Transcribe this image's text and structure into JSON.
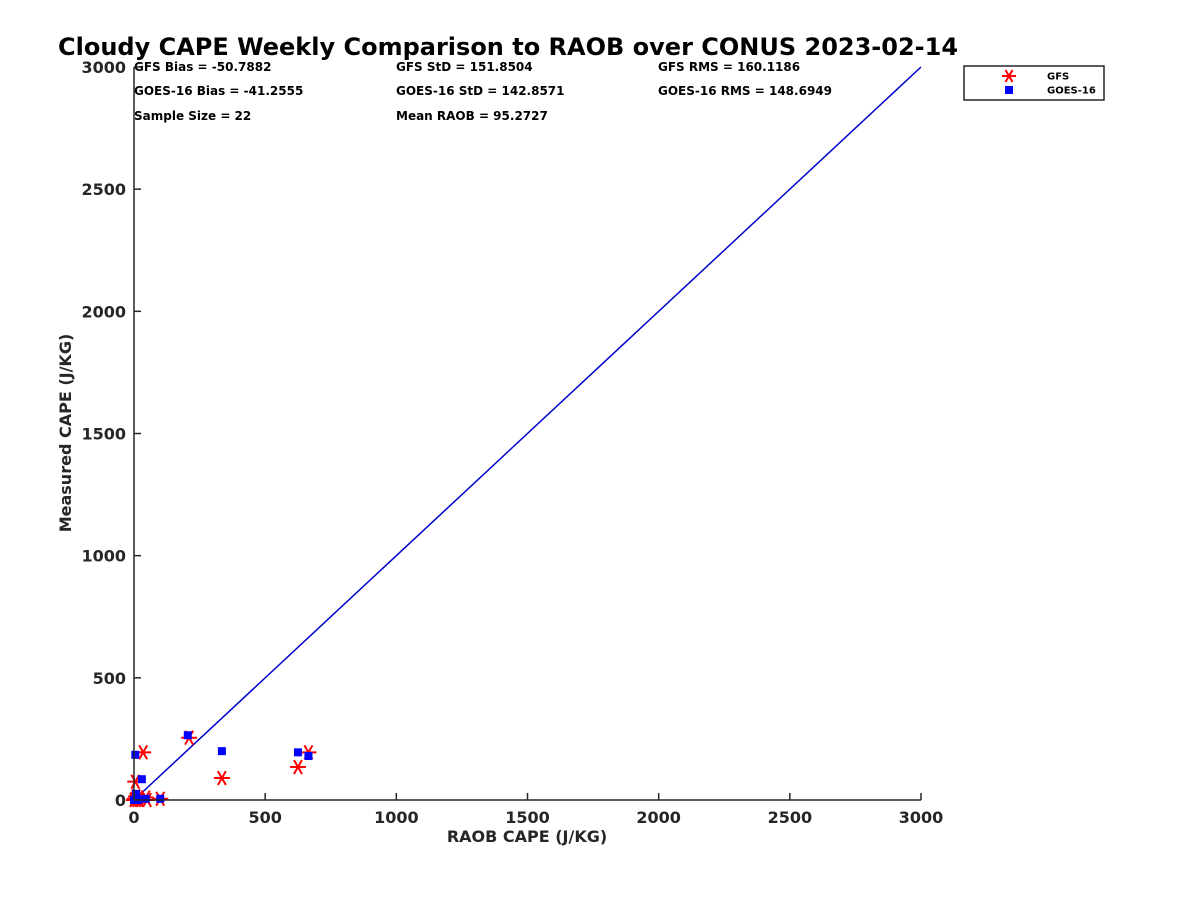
{
  "chart_data": {
    "type": "scatter",
    "title": "Cloudy CAPE Weekly Comparison to RAOB over CONUS 2023-02-14",
    "xlabel": "RAOB CAPE (J/KG)",
    "ylabel": "Measured CAPE (J/KG)",
    "xlim": [
      0,
      3000
    ],
    "ylim": [
      0,
      3000
    ],
    "xticks": [
      "0",
      "500",
      "1000",
      "1500",
      "2000",
      "2500",
      "3000"
    ],
    "yticks": [
      "0",
      "500",
      "1000",
      "1500",
      "2000",
      "2500",
      "3000"
    ],
    "xtick_values": [
      0,
      500,
      1000,
      1500,
      2000,
      2500,
      3000
    ],
    "ytick_values": [
      0,
      500,
      1000,
      1500,
      2000,
      2500,
      3000
    ],
    "grid": false,
    "legend_placement": "outside top-right",
    "reference_line": {
      "x": [
        0,
        3000
      ],
      "y": [
        0,
        3000
      ],
      "color": "#0000cc"
    },
    "stats": [
      [
        "GFS Bias = -50.7882",
        "GFS StD = 151.8504",
        "GFS RMS = 160.1186"
      ],
      [
        "GOES-16 Bias = -41.2555",
        "GOES-16 StD = 142.8571",
        "GOES-16 RMS = 148.6949"
      ],
      [
        "Sample Size = 22",
        "Mean RAOB = 95.2727",
        ""
      ]
    ],
    "series": [
      {
        "name": "GFS",
        "marker": "asterisk",
        "color": "#ff0000",
        "points": [
          [
            0,
            0
          ],
          [
            3,
            5
          ],
          [
            5,
            75
          ],
          [
            8,
            15
          ],
          [
            10,
            0
          ],
          [
            15,
            5
          ],
          [
            20,
            0
          ],
          [
            35,
            195
          ],
          [
            45,
            10
          ],
          [
            50,
            0
          ],
          [
            100,
            5
          ],
          [
            210,
            255
          ],
          [
            335,
            90
          ],
          [
            625,
            135
          ],
          [
            665,
            195
          ]
        ]
      },
      {
        "name": "GOES-16",
        "marker": "square",
        "color": "#0000ff",
        "points": [
          [
            0,
            0
          ],
          [
            5,
            185
          ],
          [
            8,
            25
          ],
          [
            12,
            5
          ],
          [
            15,
            0
          ],
          [
            30,
            85
          ],
          [
            45,
            5
          ],
          [
            100,
            5
          ],
          [
            205,
            265
          ],
          [
            335,
            200
          ],
          [
            625,
            195
          ],
          [
            665,
            180
          ]
        ]
      }
    ]
  }
}
